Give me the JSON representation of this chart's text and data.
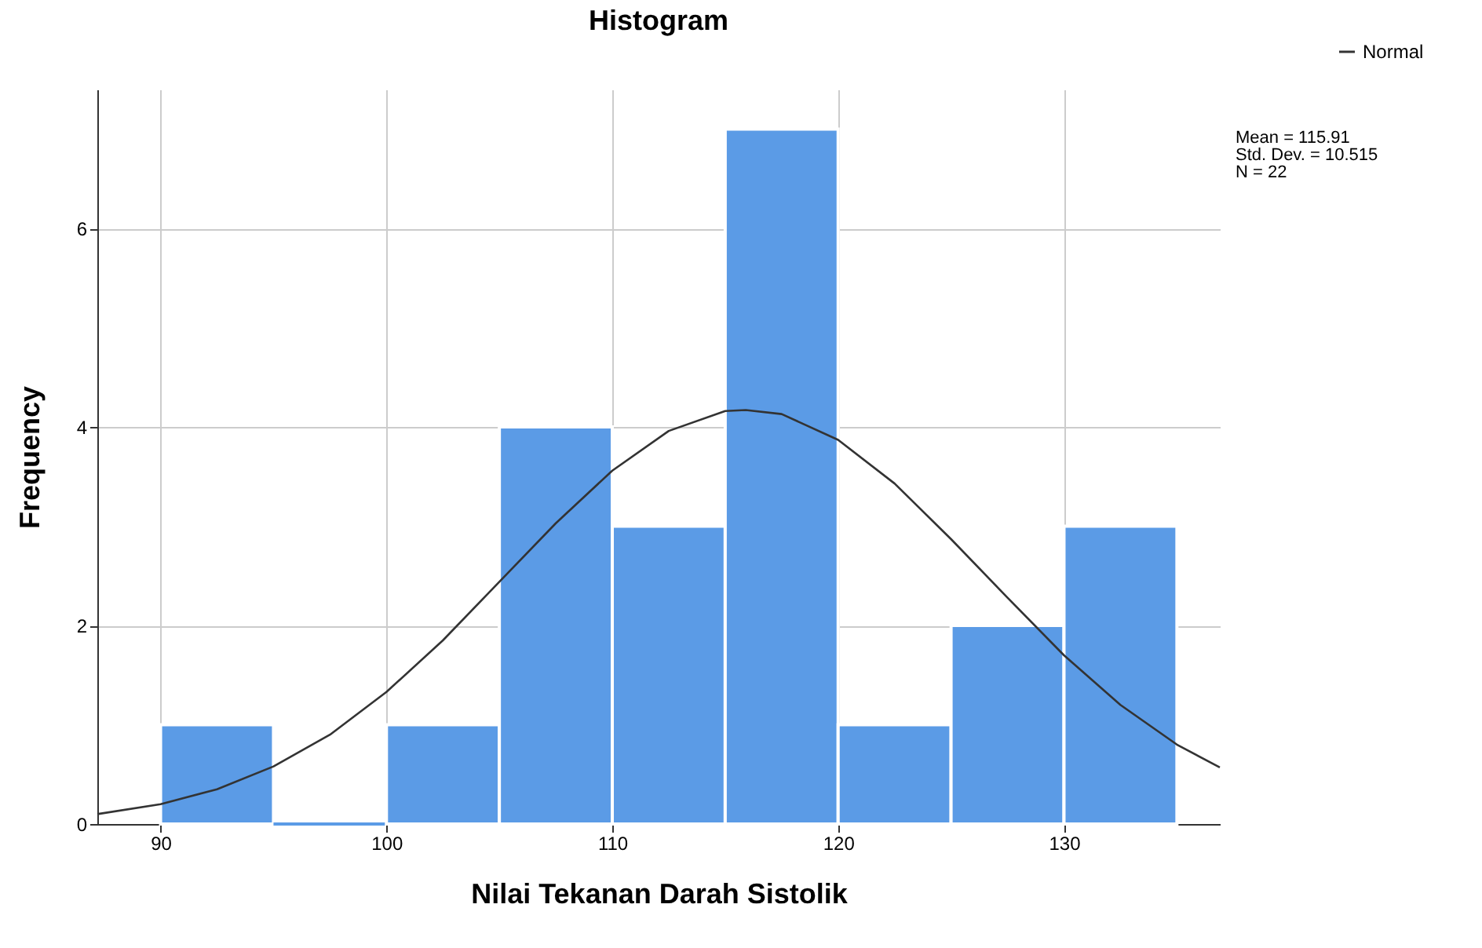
{
  "chart_data": {
    "type": "histogram",
    "title": "Histogram",
    "xlabel": "Nilai Tekanan Darah Sistolik",
    "ylabel": "Frequency",
    "bins": [
      90,
      95,
      100,
      105,
      110,
      115,
      120,
      125,
      130,
      135
    ],
    "values": [
      1,
      0,
      1,
      4,
      3,
      7,
      1,
      2,
      3
    ],
    "color": "#5b9be6",
    "series": [
      {
        "name": "Normal",
        "type": "line",
        "color": "#333333",
        "x": [
          87.2,
          90,
          92.5,
          95,
          97.5,
          100,
          102.5,
          105,
          107.5,
          110,
          112.5,
          115,
          115.91,
          117.5,
          120,
          122.5,
          125,
          127.5,
          130,
          132.5,
          135,
          136.9
        ],
        "values": [
          0.1,
          0.2,
          0.35,
          0.58,
          0.9,
          1.33,
          1.85,
          2.44,
          3.03,
          3.56,
          3.96,
          4.16,
          4.17,
          4.13,
          3.87,
          3.43,
          2.87,
          2.28,
          1.7,
          1.2,
          0.8,
          0.57
        ]
      }
    ],
    "xlim": [
      87.2,
      136.9
    ],
    "ylim": [
      0,
      7.4
    ],
    "xticks": [
      90,
      100,
      110,
      120,
      130
    ],
    "yticks": [
      0,
      2,
      4,
      6
    ],
    "grid": true,
    "legend": "top right",
    "annotations": [
      "Mean = 115.91",
      "Std. Dev. = 10.515",
      "N = 22"
    ]
  }
}
